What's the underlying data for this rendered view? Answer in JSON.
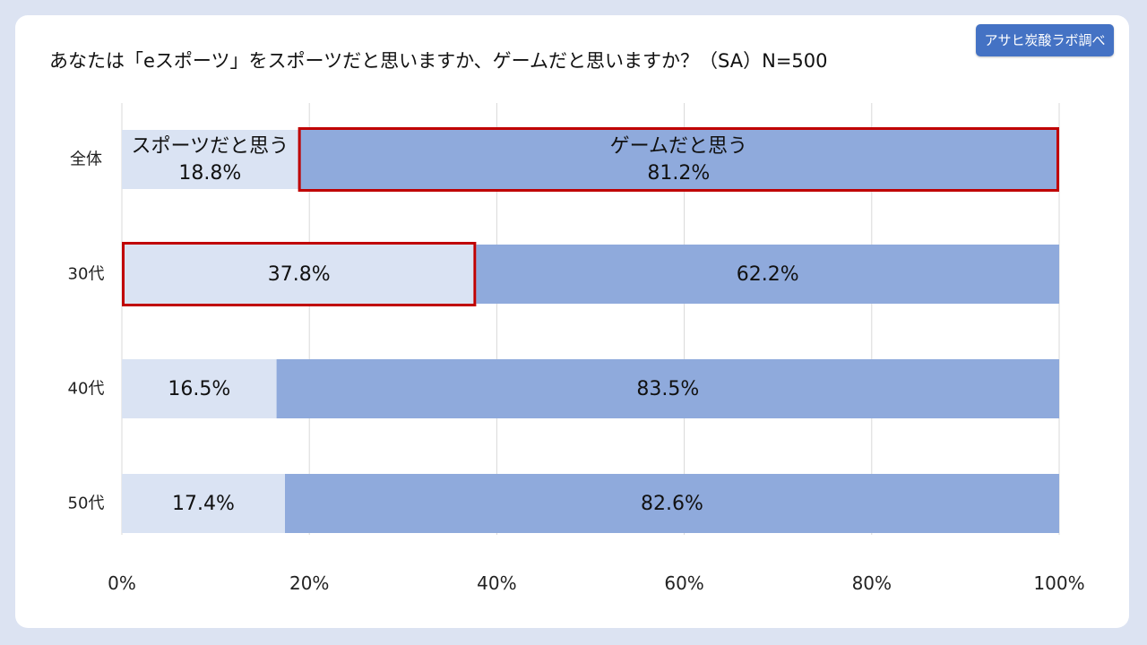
{
  "badge": "アサヒ炭酸ラボ調べ",
  "chart_data": {
    "type": "bar",
    "orientation": "horizontal",
    "stacked": true,
    "percent_stacked": true,
    "title": "あなたは「eスポーツ」をスポーツだと思いますか、ゲームだと思いますか？（SA）N=500",
    "categories": [
      "全体",
      "30代",
      "40代",
      "50代"
    ],
    "series": [
      {
        "name": "スポーツだと思う",
        "values": [
          18.8,
          37.8,
          16.5,
          17.4
        ],
        "color": "#dae3f3"
      },
      {
        "name": "ゲームだと思う",
        "values": [
          81.2,
          62.2,
          83.5,
          82.6
        ],
        "color": "#8faadc"
      }
    ],
    "data_labels": [
      [
        "スポーツだと思う\n18.8%",
        "37.8%",
        "16.5%",
        "17.4%"
      ],
      [
        "ゲームだと思う\n81.2%",
        "62.2%",
        "83.5%",
        "82.6%"
      ]
    ],
    "highlighted": [
      {
        "category": "全体",
        "series": "ゲームだと思う"
      },
      {
        "category": "30代",
        "series": "スポーツだと思う"
      }
    ],
    "highlight_color": "#c00000",
    "xlim": [
      0,
      100
    ],
    "xticks": [
      "0%",
      "20%",
      "40%",
      "60%",
      "80%",
      "100%"
    ],
    "grid": true,
    "legend": "none"
  }
}
